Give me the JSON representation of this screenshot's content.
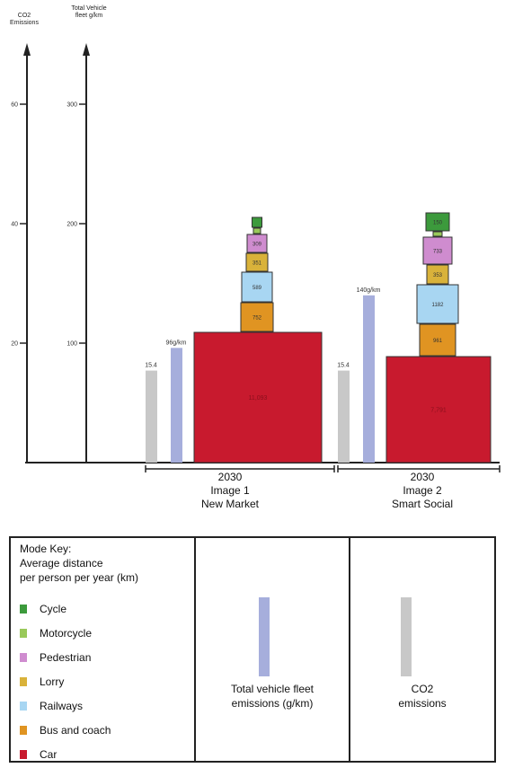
{
  "chart_data": {
    "type": "bar",
    "axes": {
      "co2": {
        "title": "CO2 Emissions",
        "ticks": [
          20,
          40,
          60
        ],
        "range": [
          0,
          60
        ]
      },
      "fleet": {
        "title": "Total Vehicle fleet g/km",
        "ticks": [
          100,
          200,
          300
        ],
        "range": [
          0,
          300
        ]
      }
    },
    "scenarios": [
      {
        "year": "2030",
        "image": "Image 1",
        "name": "New Market",
        "co2_value": 15.4,
        "co2_label": "15.4",
        "fleet_value": 96,
        "fleet_label": "96g/km",
        "modes": [
          {
            "mode": "Car",
            "distance": 11093,
            "label": "11,093"
          },
          {
            "mode": "Bus and coach",
            "distance": 752,
            "label": "752"
          },
          {
            "mode": "Railways",
            "distance": 589,
            "label": "589"
          },
          {
            "mode": "Lorry",
            "distance": 351,
            "label": "351"
          },
          {
            "mode": "Pedestrian",
            "distance": 309,
            "label": "309"
          },
          {
            "mode": "Motorcycle",
            "distance": 9,
            "label": ""
          },
          {
            "mode": "Cycle",
            "distance": 60,
            "label": ""
          }
        ]
      },
      {
        "year": "2030",
        "image": "Image 2",
        "name": "Smart Social",
        "co2_value": 15.4,
        "co2_label": "15.4",
        "fleet_value": 140,
        "fleet_label": "140g/km",
        "modes": [
          {
            "mode": "Car",
            "distance": 7791,
            "label": "7,791"
          },
          {
            "mode": "Bus and coach",
            "distance": 961,
            "label": "961"
          },
          {
            "mode": "Railways",
            "distance": 1182,
            "label": "1182"
          },
          {
            "mode": "Lorry",
            "distance": 353,
            "label": "353"
          },
          {
            "mode": "Pedestrian",
            "distance": 733,
            "label": "733"
          },
          {
            "mode": "Motorcycle",
            "distance": 20,
            "label": ""
          },
          {
            "mode": "Cycle",
            "distance": 150,
            "label": "150"
          }
        ]
      }
    ],
    "colors": {
      "Cycle": "#3c9a3c",
      "Motorcycle": "#99c95a",
      "Pedestrian": "#cf8ccf",
      "Lorry": "#d9b23a",
      "Railways": "#a8d6f2",
      "Bus and coach": "#e09422",
      "Car": "#c81a2e",
      "fleet_bar": "#a6aedc",
      "co2_bar": "#c8c8c8"
    }
  },
  "scenario_labels": [
    {
      "year": "2030",
      "image": "Image 1",
      "name": "New Market"
    },
    {
      "year": "2030",
      "image": "Image 2",
      "name": "Smart Social"
    }
  ],
  "legend": {
    "key_title": "Mode Key:\nAverage distance\nper person per year (km)",
    "modes": [
      "Cycle",
      "Motorcycle",
      "Pedestrian",
      "Lorry",
      "Railways",
      "Bus and coach",
      "Car"
    ],
    "fleet_caption": "Total vehicle fleet\nemissions (g/km)",
    "co2_caption": "CO2\nemissions"
  }
}
